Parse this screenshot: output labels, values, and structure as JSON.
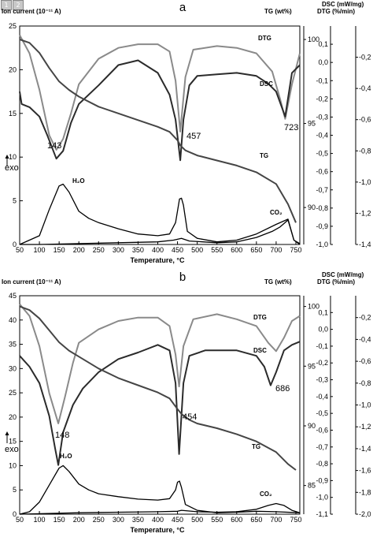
{
  "toolbar": {
    "buttons": [
      "1",
      "2"
    ]
  },
  "chart_data": [
    {
      "type": "line",
      "panel_label": "a",
      "header": {
        "ion_current": "Ion current (10⁻¹¹ A)",
        "tg": "TG (wt%)",
        "dsc": "DSC (mW/mg)",
        "dtg": "DTG (%/min)"
      },
      "xlabel": "Temperature, °C",
      "x_ticks": [
        50,
        100,
        150,
        200,
        250,
        300,
        350,
        400,
        450,
        500,
        550,
        600,
        650,
        700,
        750
      ],
      "xlim": [
        50,
        760
      ],
      "ion_axis": {
        "ticks": [
          0,
          5,
          10,
          15,
          20,
          25
        ],
        "range": [
          0,
          25
        ]
      },
      "tg_axis": {
        "ticks": [
          90,
          95,
          100
        ],
        "range": [
          87.8,
          100.8
        ]
      },
      "dtg_axis": {
        "ticks": [
          "0,1",
          "0,0",
          "-0,1",
          "-0,2",
          "-0,3",
          "-0,4",
          "-0,5",
          "-0,6",
          "-0,7",
          "-0,8",
          "-0,9",
          "-1,0"
        ],
        "range": [
          -1.0,
          0.2
        ]
      },
      "dsc_axis": {
        "ticks": [
          "-0,2",
          "-0,4",
          "-0,6",
          "-0,8",
          "-1,0",
          "-1,2",
          "-1,4"
        ],
        "range": [
          -1.4,
          0.0
        ]
      },
      "exo_label": "exo",
      "annotations": [
        "143",
        "457",
        "723"
      ],
      "series": [
        {
          "name": "DTG",
          "axis": "dtg",
          "color": "#8a8a8a",
          "x": [
            50,
            75,
            100,
            125,
            143,
            160,
            180,
            200,
            250,
            300,
            350,
            400,
            430,
            445,
            457,
            470,
            490,
            550,
            600,
            650,
            690,
            710,
            723,
            740,
            760
          ],
          "y": [
            0.15,
            0.05,
            -0.15,
            -0.4,
            -0.48,
            -0.42,
            -0.28,
            -0.12,
            0.02,
            0.08,
            0.1,
            0.1,
            0.06,
            -0.1,
            -0.38,
            -0.08,
            0.07,
            0.09,
            0.08,
            0.05,
            -0.05,
            -0.2,
            -0.31,
            -0.12,
            0.05
          ]
        },
        {
          "name": "DSC",
          "axis": "dsc",
          "color": "#2b2b2b",
          "x": [
            50,
            55,
            75,
            100,
            120,
            143,
            160,
            180,
            200,
            250,
            300,
            350,
            400,
            430,
            445,
            457,
            465,
            480,
            500,
            550,
            600,
            650,
            680,
            700,
            723,
            740,
            760
          ],
          "y": [
            -0.42,
            -0.5,
            -0.52,
            -0.58,
            -0.7,
            -0.85,
            -0.8,
            -0.62,
            -0.5,
            -0.38,
            -0.25,
            -0.22,
            -0.3,
            -0.44,
            -0.6,
            -0.86,
            -0.6,
            -0.38,
            -0.32,
            -0.31,
            -0.3,
            -0.32,
            -0.37,
            -0.42,
            -0.58,
            -0.3,
            -0.25
          ]
        },
        {
          "name": "TG",
          "axis": "tg",
          "color": "#454545",
          "x": [
            50,
            75,
            100,
            125,
            150,
            175,
            200,
            250,
            300,
            350,
            400,
            430,
            450,
            457,
            470,
            500,
            550,
            600,
            650,
            700,
            730,
            750
          ],
          "y": [
            100.0,
            99.8,
            99.2,
            98.3,
            97.5,
            97.0,
            96.6,
            96.0,
            95.6,
            95.2,
            94.8,
            94.5,
            94.0,
            93.7,
            93.4,
            93.1,
            92.8,
            92.5,
            92.1,
            91.4,
            90.2,
            89.1
          ]
        },
        {
          "name": "H₂O",
          "axis": "ion",
          "color": "#000000",
          "x": [
            50,
            100,
            125,
            150,
            160,
            175,
            200,
            225,
            250,
            300,
            350,
            400,
            430,
            445,
            455,
            460,
            465,
            475,
            500,
            550,
            600,
            650,
            700,
            720,
            730,
            745,
            760
          ],
          "y": [
            0,
            1.0,
            4.0,
            6.7,
            6.9,
            6.0,
            3.8,
            3.0,
            2.5,
            1.8,
            1.2,
            1.0,
            1.2,
            2.5,
            5.2,
            5.3,
            4.5,
            1.5,
            0.7,
            0.3,
            0.5,
            1.2,
            2.3,
            2.7,
            2.9,
            0.5,
            0.1
          ]
        },
        {
          "name": "CO₂",
          "axis": "ion",
          "color": "#000000",
          "x": [
            50,
            100,
            200,
            300,
            400,
            440,
            460,
            480,
            550,
            600,
            650,
            690,
            710,
            730,
            745,
            760
          ],
          "y": [
            0,
            0,
            0.1,
            0.2,
            0.3,
            0.5,
            0.7,
            0.4,
            0.2,
            0.3,
            0.8,
            1.5,
            2.0,
            2.8,
            0.5,
            0
          ]
        }
      ]
    },
    {
      "type": "line",
      "panel_label": "b",
      "header": {
        "ion_current": "Ion current (10⁻¹¹ A)",
        "tg": "TG (wt%)",
        "dsc": "DSC (mW/mg)",
        "dtg": "DTG (%/min)"
      },
      "xlabel": "Temperature, °C",
      "x_ticks": [
        50,
        100,
        150,
        200,
        250,
        300,
        350,
        400,
        450,
        500,
        550,
        600,
        650,
        700,
        750
      ],
      "xlim": [
        50,
        760
      ],
      "ion_axis": {
        "ticks": [
          0,
          5,
          10,
          15,
          20,
          25,
          30,
          35,
          40,
          45
        ],
        "range": [
          0,
          45
        ]
      },
      "tg_axis": {
        "ticks": [
          85,
          90,
          95,
          100
        ],
        "range": [
          82.6,
          100.9
        ]
      },
      "dtg_axis": {
        "ticks": [
          "0,1",
          "0,0",
          "-0,1",
          "-0,2",
          "-0,3",
          "-0,4",
          "-0,5",
          "-0,6",
          "-0,7",
          "-0,8",
          "-0,9",
          "-1,0",
          "-1,1"
        ],
        "range": [
          -1.1,
          0.2
        ]
      },
      "dsc_axis": {
        "ticks": [
          "-0,2",
          "-0,4",
          "-0,6",
          "-0,8",
          "-1,0",
          "-1,2",
          "-1,4",
          "-1,6",
          "-1,8",
          "-2,0"
        ],
        "range": [
          -2.0,
          0.0
        ]
      },
      "exo_label": "exo",
      "annotations": [
        "148",
        "454",
        "686"
      ],
      "series": [
        {
          "name": "DTG",
          "axis": "dtg",
          "color": "#8a8a8a",
          "x": [
            50,
            75,
            100,
            125,
            148,
            165,
            185,
            200,
            250,
            300,
            350,
            400,
            430,
            445,
            454,
            465,
            490,
            550,
            600,
            650,
            680,
            700,
            720,
            740,
            760
          ],
          "y": [
            0.15,
            0.08,
            -0.1,
            -0.38,
            -0.56,
            -0.4,
            -0.2,
            -0.08,
            0.0,
            0.05,
            0.07,
            0.07,
            0.02,
            -0.15,
            -0.34,
            -0.1,
            0.06,
            0.09,
            0.06,
            0.02,
            -0.08,
            -0.13,
            -0.05,
            0.05,
            0.08
          ]
        },
        {
          "name": "DSC",
          "axis": "dsc",
          "color": "#2b2b2b",
          "x": [
            50,
            75,
            100,
            125,
            140,
            148,
            160,
            185,
            210,
            250,
            300,
            350,
            400,
            430,
            445,
            454,
            465,
            480,
            520,
            600,
            650,
            670,
            686,
            700,
            720,
            740,
            760
          ],
          "y": [
            -0.55,
            -0.65,
            -0.8,
            -1.1,
            -1.4,
            -1.55,
            -1.25,
            -1.0,
            -0.85,
            -0.7,
            -0.58,
            -0.52,
            -0.45,
            -0.5,
            -0.8,
            -1.45,
            -0.8,
            -0.55,
            -0.5,
            -0.5,
            -0.55,
            -0.65,
            -0.82,
            -0.7,
            -0.5,
            -0.45,
            -0.42
          ]
        },
        {
          "name": "TG",
          "axis": "tg",
          "color": "#454545",
          "x": [
            50,
            75,
            100,
            125,
            150,
            175,
            200,
            250,
            300,
            350,
            400,
            430,
            450,
            460,
            480,
            500,
            550,
            600,
            650,
            700,
            730,
            750
          ],
          "y": [
            100.0,
            99.7,
            99.0,
            98.0,
            97.0,
            96.3,
            95.8,
            94.8,
            94.0,
            93.4,
            92.8,
            92.3,
            91.4,
            91.0,
            90.5,
            90.2,
            89.8,
            89.3,
            88.7,
            87.8,
            86.8,
            86.3
          ]
        },
        {
          "name": "H₂O",
          "axis": "ion",
          "color": "#000000",
          "x": [
            50,
            75,
            100,
            125,
            150,
            160,
            175,
            200,
            225,
            250,
            300,
            350,
            400,
            430,
            445,
            450,
            455,
            460,
            470,
            500,
            550,
            600,
            650,
            700,
            760
          ],
          "y": [
            0,
            0.5,
            2.5,
            6.0,
            9.5,
            10.0,
            8.8,
            6.2,
            5.0,
            4.2,
            3.6,
            3.1,
            2.9,
            3.2,
            5.0,
            6.6,
            6.8,
            5.5,
            2.0,
            0.8,
            0.3,
            0.4,
            0.6,
            0.5,
            0.3
          ]
        },
        {
          "name": "CO₂",
          "axis": "ion",
          "color": "#000000",
          "x": [
            50,
            100,
            200,
            300,
            400,
            450,
            460,
            500,
            550,
            600,
            650,
            680,
            700,
            720,
            740,
            760
          ],
          "y": [
            0,
            0.1,
            0.3,
            0.4,
            0.5,
            0.6,
            0.8,
            0.5,
            0.4,
            0.5,
            1.0,
            1.8,
            2.2,
            1.8,
            0.8,
            0.3
          ]
        }
      ]
    }
  ]
}
